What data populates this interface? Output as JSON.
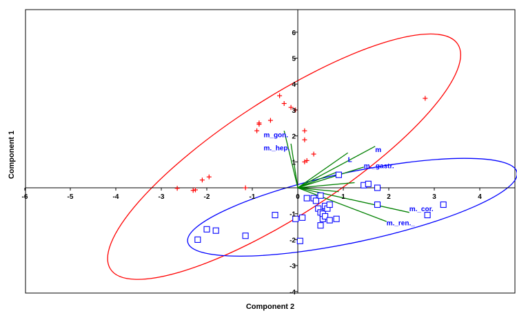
{
  "chart_data": {
    "type": "scatter",
    "title": "",
    "xlabel": "Component 2",
    "ylabel": "Component 1",
    "xlim": [
      -6,
      5
    ],
    "ylim": [
      -4,
      7
    ],
    "xticks": [
      -6,
      -5,
      -4,
      -3,
      -2,
      -1,
      0,
      1,
      2,
      3,
      4
    ],
    "yticks": [
      -4,
      -3,
      -2,
      -1,
      1,
      2,
      3,
      4,
      5,
      6
    ],
    "grid": false,
    "colors": {
      "group1": "#ff0000",
      "group2": "#0000ff",
      "vectors": "#008000",
      "vector_labels": "#0000ff"
    },
    "series": [
      {
        "marker": "plus",
        "color": "#ff0000",
        "points": [
          [
            -2.65,
            -0.02
          ],
          [
            -2.3,
            -0.1
          ],
          [
            -2.25,
            -0.08
          ],
          [
            -2.1,
            0.3
          ],
          [
            -1.95,
            0.42
          ],
          [
            -1.15,
            0.0
          ],
          [
            -0.9,
            2.2
          ],
          [
            -0.85,
            2.5
          ],
          [
            -0.85,
            2.45
          ],
          [
            -0.6,
            2.6
          ],
          [
            -0.4,
            3.55
          ],
          [
            -0.3,
            3.25
          ],
          [
            -0.15,
            3.1
          ],
          [
            -0.05,
            3.0
          ],
          [
            0.15,
            2.2
          ],
          [
            0.15,
            1.85
          ],
          [
            0.2,
            1.05
          ],
          [
            0.15,
            1.0
          ],
          [
            0.35,
            1.3
          ],
          [
            2.8,
            3.45
          ]
        ],
        "ellipse": {
          "center": [
            -0.3,
            1.2
          ],
          "semi_major": 4.55,
          "semi_minor": 2.25,
          "angle_deg": 33
        }
      },
      {
        "marker": "square",
        "color": "#0000ff",
        "points": [
          [
            -2.2,
            -2.0
          ],
          [
            -2.0,
            -1.6
          ],
          [
            -1.8,
            -1.65
          ],
          [
            -1.15,
            -1.85
          ],
          [
            -0.5,
            -1.05
          ],
          [
            -0.05,
            -1.2
          ],
          [
            0.1,
            -1.15
          ],
          [
            0.05,
            -2.05
          ],
          [
            0.2,
            -0.4
          ],
          [
            0.35,
            -0.4
          ],
          [
            0.4,
            -0.5
          ],
          [
            0.45,
            -0.8
          ],
          [
            0.5,
            -0.3
          ],
          [
            0.5,
            -0.95
          ],
          [
            0.55,
            -1.2
          ],
          [
            0.55,
            -1.0
          ],
          [
            0.6,
            -0.7
          ],
          [
            0.6,
            -1.1
          ],
          [
            0.65,
            -0.8
          ],
          [
            0.7,
            -0.65
          ],
          [
            0.7,
            -1.25
          ],
          [
            0.5,
            -1.45
          ],
          [
            0.85,
            -1.2
          ],
          [
            0.9,
            0.5
          ],
          [
            1.45,
            0.1
          ],
          [
            1.55,
            0.15
          ],
          [
            1.75,
            0.0
          ],
          [
            1.75,
            -0.65
          ],
          [
            2.85,
            -1.05
          ],
          [
            3.2,
            -0.65
          ]
        ],
        "ellipse": {
          "center": [
            1.2,
            -0.75
          ],
          "semi_major": 3.7,
          "semi_minor": 1.35,
          "angle_deg": 12
        }
      }
    ],
    "vectors": [
      {
        "label": "m_gon.",
        "end": [
          -0.3,
          2.2
        ]
      },
      {
        "label": "m._hep.",
        "end": [
          -0.15,
          1.7
        ]
      },
      {
        "label": "L",
        "end": [
          1.1,
          1.35
        ]
      },
      {
        "label": "m",
        "end": [
          1.7,
          1.6
        ]
      },
      {
        "label": "m._gastr.",
        "end": [
          1.45,
          0.8
        ]
      },
      {
        "label": "m._cor.",
        "end": [
          2.45,
          -0.95
        ]
      },
      {
        "label": "m._ren._",
        "end": [
          1.95,
          -1.3
        ]
      }
    ],
    "extra_lines_from_origin": [
      [
        0.85,
        0.6
      ],
      [
        1.25,
        0.2
      ],
      [
        0.9,
        -0.15
      ]
    ]
  }
}
